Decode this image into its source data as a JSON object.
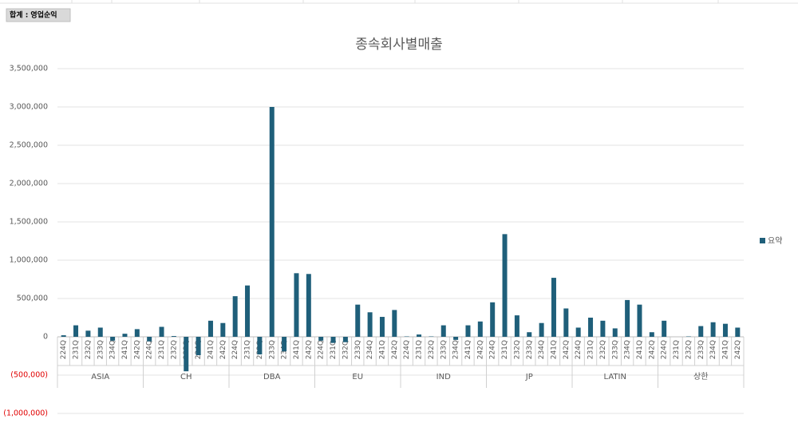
{
  "pivot_field": "합계 : 영업순익",
  "chart_data": {
    "type": "bar",
    "title": "종속회사별매출",
    "groups": [
      "ASIA",
      "CH",
      "DBA",
      "EU",
      "IND",
      "JP",
      "LATIN",
      "상한"
    ],
    "categories": [
      "224Q",
      "231Q",
      "232Q",
      "233Q",
      "234Q",
      "241Q",
      "242Q",
      "224Q",
      "231Q",
      "232Q",
      "233Q",
      "234Q",
      "241Q",
      "242Q",
      "224Q",
      "231Q",
      "232Q",
      "233Q",
      "234Q",
      "241Q",
      "242Q",
      "224Q",
      "231Q",
      "232Q",
      "233Q",
      "234Q",
      "241Q",
      "242Q",
      "224Q",
      "231Q",
      "232Q",
      "233Q",
      "234Q",
      "241Q",
      "242Q",
      "224Q",
      "231Q",
      "232Q",
      "233Q",
      "234Q",
      "241Q",
      "242Q",
      "224Q",
      "231Q",
      "232Q",
      "233Q",
      "234Q",
      "241Q",
      "242Q",
      "224Q",
      "231Q",
      "232Q",
      "233Q",
      "234Q",
      "241Q",
      "242Q"
    ],
    "series": [
      {
        "name": "요약",
        "color": "#1f5f7a",
        "values": [
          20000,
          150000,
          80000,
          120000,
          -50000,
          40000,
          100000,
          -60000,
          130000,
          10000,
          -450000,
          -240000,
          210000,
          180000,
          530000,
          670000,
          -230000,
          3000000,
          -190000,
          830000,
          820000,
          -50000,
          -80000,
          -70000,
          420000,
          320000,
          260000,
          350000,
          5000,
          30000,
          5000,
          150000,
          -40000,
          150000,
          200000,
          450000,
          1340000,
          280000,
          60000,
          180000,
          770000,
          370000,
          120000,
          250000,
          210000,
          110000,
          480000,
          420000,
          60000,
          210000,
          0,
          5000,
          140000,
          190000,
          170000,
          120000
        ]
      }
    ],
    "ylim": [
      -1000000,
      3500000
    ],
    "yticks": [
      {
        "value": -1000000,
        "label": "(1,000,000)"
      },
      {
        "value": -500000,
        "label": "(500,000)"
      },
      0,
      {
        "value": 500000,
        "label": "500,000"
      },
      {
        "value": 1000000,
        "label": "1,000,000"
      },
      {
        "value": 1500000,
        "label": "1,500,000"
      },
      {
        "value": 2000000,
        "label": "2,000,000"
      },
      {
        "value": 2500000,
        "label": "2,500,000"
      },
      {
        "value": 3000000,
        "label": "3,000,000"
      },
      {
        "value": 3500000,
        "label": "3,500,000"
      }
    ],
    "negative_tick_color": "#e00000",
    "grid": true
  }
}
